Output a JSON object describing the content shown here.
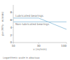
{
  "chart_data": {
    "type": "line",
    "xlabel": "v (m/min)",
    "ylabel": "pv (MPa · m/min)",
    "annotations": [
      "Logarithmic scale in abscissa"
    ],
    "log": "x",
    "xlim": [
      10,
      100
    ],
    "ylim": [
      0,
      10
    ],
    "xticks": [
      10,
      30,
      100
    ],
    "yticks": [
      0,
      2,
      4,
      6,
      8
    ],
    "series": [
      {
        "name": "Non-lubricated bearings",
        "color": "#a0c8e0",
        "x": [
          10,
          100
        ],
        "values": [
          5.5,
          5.5
        ]
      },
      {
        "name": "Lubricated bearings",
        "color": "#a0c8e0",
        "x": [
          10,
          30,
          100
        ],
        "values": [
          6.5,
          6.5,
          3.5
        ]
      }
    ]
  }
}
